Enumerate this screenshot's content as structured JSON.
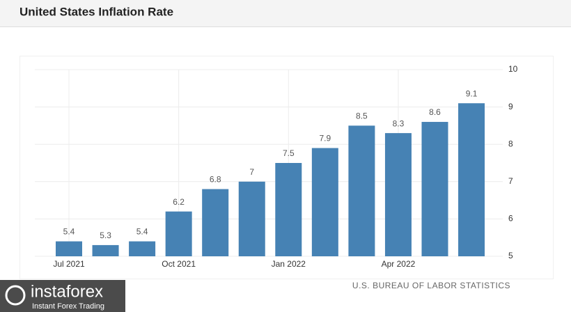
{
  "chart_data": {
    "type": "bar",
    "title": "United States Inflation Rate",
    "categories": [
      "Jul 2021",
      null,
      null,
      "Oct 2021",
      null,
      null,
      "Jan 2022",
      null,
      null,
      "Apr 2022",
      null,
      null
    ],
    "values": [
      5.4,
      5.3,
      5.4,
      6.2,
      6.8,
      7,
      7.5,
      7.9,
      8.5,
      8.3,
      8.6,
      9.1
    ],
    "color": "#4682b4",
    "ylim": [
      5,
      10
    ],
    "yticks": [
      5,
      6,
      7,
      8,
      9,
      10
    ],
    "grid": true,
    "source": "U.S. BUREAU OF LABOR STATISTICS"
  },
  "watermark": {
    "brand": "instaforex",
    "tagline": "Instant Forex Trading"
  }
}
